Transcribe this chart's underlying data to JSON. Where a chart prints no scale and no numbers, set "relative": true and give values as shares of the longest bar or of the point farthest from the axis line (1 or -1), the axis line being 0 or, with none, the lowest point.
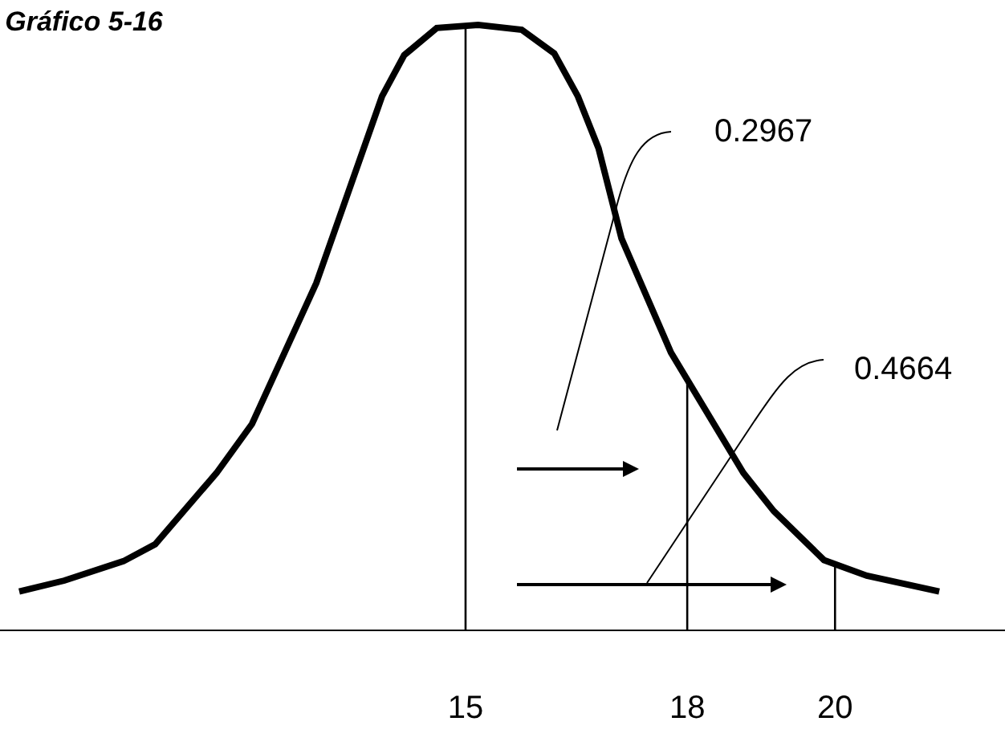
{
  "chart_data": {
    "type": "line",
    "title": "Gráfico 5-16",
    "relative": true,
    "x": [
      8.96,
      9.57,
      10.37,
      10.8,
      11.63,
      12.11,
      12.98,
      13.87,
      14.17,
      14.61,
      15.17,
      15.76,
      16.2,
      16.52,
      16.8,
      17.11,
      17.39,
      17.78,
      18.76,
      19.17,
      19.85,
      20.43,
      21.41
    ],
    "series": [
      {
        "color": "#000000",
        "values": [
          0.063,
          0.081,
          0.113,
          0.141,
          0.259,
          0.34,
          0.573,
          0.882,
          0.95,
          0.995,
          1.0,
          0.992,
          0.953,
          0.882,
          0.796,
          0.647,
          0.568,
          0.458,
          0.259,
          0.196,
          0.115,
          0.089,
          0.063
        ]
      }
    ],
    "xlim": [
      8.7,
      22.3
    ],
    "xticks": [
      15,
      18,
      20
    ],
    "ref_lines": [
      {
        "axis": "x",
        "value": 15,
        "color": "#000000"
      },
      {
        "axis": "x",
        "value": 18,
        "color": "#000000"
      },
      {
        "axis": "x",
        "value": 20,
        "color": "#000000"
      }
    ],
    "annotations": [
      "0.2967",
      "0.4664"
    ],
    "grid": false,
    "marker": "none",
    "line_style": "solid"
  }
}
